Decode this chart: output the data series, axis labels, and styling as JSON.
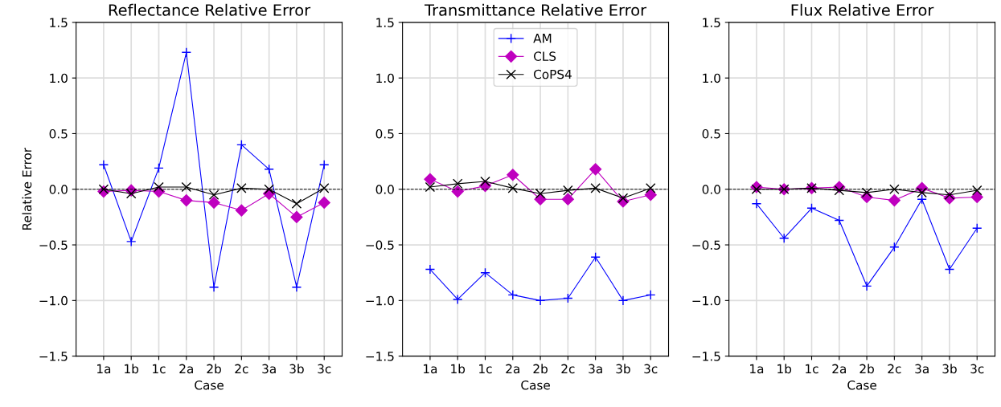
{
  "chart_data": [
    {
      "type": "line",
      "title": "Reflectance Relative Error",
      "xlabel": "Case",
      "ylabel": "Relative Error",
      "categories": [
        "1a",
        "1b",
        "1c",
        "2a",
        "2b",
        "2c",
        "3a",
        "3b",
        "3c"
      ],
      "ylim": [
        -1.5,
        1.5
      ],
      "yticks": [
        {
          "value": -1.5,
          "label": "−1.5"
        },
        {
          "value": -1.0,
          "label": "−1.0"
        },
        {
          "value": -0.5,
          "label": "−0.5"
        },
        {
          "value": 0,
          "label": "0.0"
        },
        {
          "value": 0.5,
          "label": "0.5"
        },
        {
          "value": 1.0,
          "label": "1.0"
        },
        {
          "value": 1.5,
          "label": "1.5"
        }
      ],
      "grid": true,
      "legend": false,
      "ref_lines": [
        {
          "axis": "y",
          "value": 0,
          "color": "#000000",
          "line_style": "dashed"
        }
      ],
      "series": [
        {
          "color": "#0000ff",
          "marker": "plus",
          "values": [
            0.22,
            -0.47,
            0.19,
            1.23,
            -0.88,
            0.4,
            0.18,
            -0.88,
            0.22
          ]
        },
        {
          "color": "#bf00bf",
          "marker": "diamond",
          "values": [
            -0.02,
            -0.01,
            -0.02,
            -0.1,
            -0.12,
            -0.19,
            -0.04,
            -0.25,
            -0.12
          ]
        },
        {
          "color": "#000000",
          "marker": "cross",
          "values": [
            0.0,
            -0.04,
            0.02,
            0.02,
            -0.05,
            0.01,
            0.0,
            -0.13,
            0.01
          ]
        }
      ]
    },
    {
      "type": "line",
      "title": "Transmittance Relative Error",
      "xlabel": "Case",
      "categories": [
        "1a",
        "1b",
        "1c",
        "2a",
        "2b",
        "2c",
        "3a",
        "3b",
        "3c"
      ],
      "ylim": [
        -1.5,
        1.5
      ],
      "yticks": [
        {
          "value": -1.5,
          "label": "−1.5"
        },
        {
          "value": -1.0,
          "label": "−1.0"
        },
        {
          "value": -0.5,
          "label": "−0.5"
        },
        {
          "value": 0,
          "label": "0.0"
        },
        {
          "value": 0.5,
          "label": "0.5"
        },
        {
          "value": 1.0,
          "label": "1.0"
        },
        {
          "value": 1.5,
          "label": "1.5"
        }
      ],
      "grid": true,
      "legend": "top",
      "ref_lines": [
        {
          "axis": "y",
          "value": 0,
          "color": "#000000",
          "line_style": "dashed"
        }
      ],
      "series": [
        {
          "name": "AM",
          "color": "#0000ff",
          "marker": "plus",
          "values": [
            -0.72,
            -0.99,
            -0.75,
            -0.95,
            -1.0,
            -0.98,
            -0.61,
            -1.0,
            -0.95
          ]
        },
        {
          "name": "CLS",
          "color": "#bf00bf",
          "marker": "diamond",
          "values": [
            0.09,
            -0.02,
            0.03,
            0.13,
            -0.09,
            -0.09,
            0.18,
            -0.11,
            -0.05
          ]
        },
        {
          "name": "CoPS4",
          "color": "#000000",
          "marker": "cross",
          "values": [
            0.02,
            0.05,
            0.07,
            0.01,
            -0.04,
            -0.01,
            0.01,
            -0.08,
            0.01
          ]
        }
      ]
    },
    {
      "type": "line",
      "title": "Flux Relative Error",
      "xlabel": "Case",
      "categories": [
        "1a",
        "1b",
        "1c",
        "2a",
        "2b",
        "2c",
        "3a",
        "3b",
        "3c"
      ],
      "ylim": [
        -1.5,
        1.5
      ],
      "yticks": [
        {
          "value": -1.5,
          "label": "−1.5"
        },
        {
          "value": -1.0,
          "label": "−1.0"
        },
        {
          "value": -0.5,
          "label": "−0.5"
        },
        {
          "value": 0,
          "label": "0.0"
        },
        {
          "value": 0.5,
          "label": "0.5"
        },
        {
          "value": 1.0,
          "label": "1.0"
        },
        {
          "value": 1.5,
          "label": "1.5"
        }
      ],
      "grid": true,
      "legend": false,
      "ref_lines": [
        {
          "axis": "y",
          "value": 0,
          "color": "#000000",
          "line_style": "dashed"
        }
      ],
      "series": [
        {
          "color": "#0000ff",
          "marker": "plus",
          "values": [
            -0.13,
            -0.44,
            -0.17,
            -0.28,
            -0.87,
            -0.52,
            -0.09,
            -0.72,
            -0.35
          ]
        },
        {
          "color": "#bf00bf",
          "marker": "diamond",
          "values": [
            0.02,
            0.0,
            0.01,
            0.02,
            -0.07,
            -0.1,
            0.01,
            -0.08,
            -0.07
          ]
        },
        {
          "color": "#000000",
          "marker": "cross",
          "values": [
            0.0,
            0.0,
            0.01,
            -0.01,
            -0.03,
            0.0,
            -0.03,
            -0.05,
            -0.01
          ]
        }
      ]
    }
  ]
}
